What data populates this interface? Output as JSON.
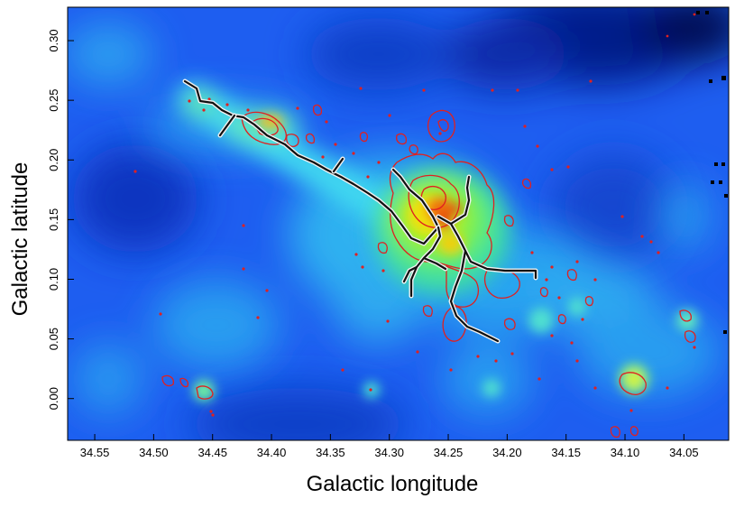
{
  "figure": {
    "xlabel": "Galactic longitude",
    "ylabel": "Galactic latitude",
    "xticks": [
      "34.55",
      "34.50",
      "34.45",
      "34.40",
      "34.35",
      "34.30",
      "34.25",
      "34.20",
      "34.15",
      "34.10",
      "34.05"
    ],
    "yticks": [
      "0.00",
      "0.05",
      "0.10",
      "0.15",
      "0.20",
      "0.25",
      "0.30"
    ],
    "xlim": [
      34.573,
      34.012
    ],
    "ylim": [
      -0.035,
      0.328
    ],
    "colors": {
      "background": "#1e5ef0",
      "contour": "#e02020",
      "filament": "#111111"
    }
  }
}
